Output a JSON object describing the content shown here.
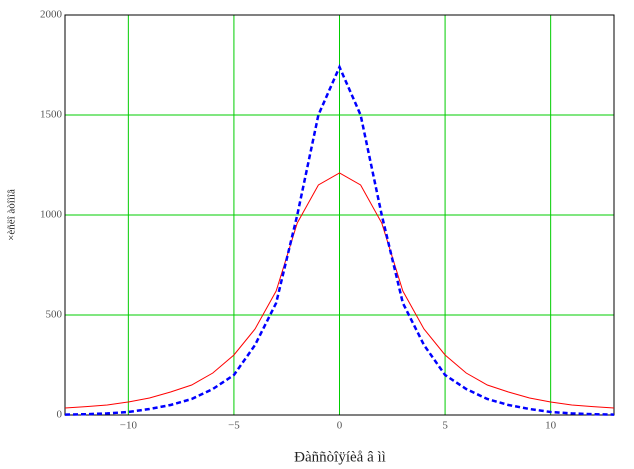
{
  "chart_data": {
    "type": "line",
    "xlabel": "Ðàññòîÿíèå â ìì",
    "ylabel": "×èñëî àòîìîâ",
    "x": [
      -13,
      -12,
      -11,
      -10,
      -9,
      -8,
      -7,
      -6,
      -5,
      -4,
      -3,
      -2,
      -1,
      0,
      1,
      2,
      3,
      4,
      5,
      6,
      7,
      8,
      9,
      10,
      11,
      12,
      13
    ],
    "series": [
      {
        "color": "#ff0000",
        "dash": false,
        "values": [
          35,
          42,
          50,
          65,
          85,
          115,
          150,
          210,
          300,
          430,
          620,
          960,
          1150,
          1210,
          1150,
          960,
          620,
          430,
          300,
          210,
          150,
          115,
          85,
          65,
          50,
          42,
          35
        ]
      },
      {
        "color": "#0000ff",
        "dash": true,
        "values": [
          2,
          4,
          8,
          15,
          30,
          50,
          80,
          130,
          200,
          350,
          560,
          1000,
          1500,
          1740,
          1500,
          1000,
          560,
          350,
          200,
          130,
          80,
          50,
          30,
          15,
          8,
          4,
          2
        ]
      }
    ],
    "xlim": [
      -13,
      13
    ],
    "ylim": [
      0,
      2000
    ],
    "xticks": [
      {
        "value": -10,
        "label": "−10"
      },
      {
        "value": -5,
        "label": "−5"
      },
      0,
      5,
      10
    ],
    "yticks": [
      0,
      500,
      1000,
      1500,
      2000
    ],
    "grid": true,
    "grid_color": "#00cc00"
  }
}
